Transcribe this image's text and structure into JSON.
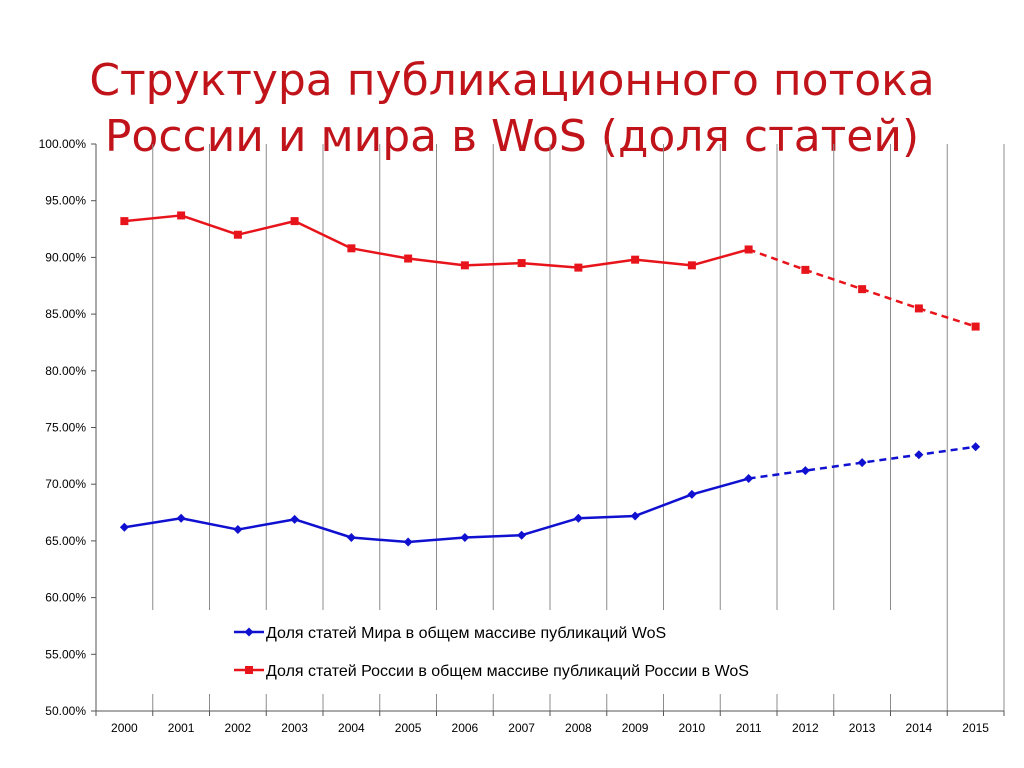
{
  "slide": {
    "title_line1": "Структура публикационного потока",
    "title_line2": "России и мира в WoS (доля статей)"
  },
  "colors": {
    "title": "#c0131a",
    "world": "#1010d0",
    "russia": "#e8141b",
    "grid": "#8c8c8c"
  },
  "chart_data": {
    "type": "line",
    "categories": [
      "2000",
      "2001",
      "2002",
      "2003",
      "2004",
      "2005",
      "2006",
      "2007",
      "2008",
      "2009",
      "2010",
      "2011",
      "2012",
      "2013",
      "2014",
      "2015"
    ],
    "y_tick_labels": [
      "100.00%",
      "95.00%",
      "90.00%",
      "85.00%",
      "80.00%",
      "75.00%",
      "70.00%",
      "65.00%",
      "60.00%",
      "55.00%",
      "50.00%"
    ],
    "ylim": [
      50,
      100
    ],
    "y_unit": "%",
    "grid": "vertical",
    "legend_position": "bottom-center",
    "series": [
      {
        "name": "Доля статей Мира в общем массиве публикаций WoS",
        "color": "#1010d0",
        "marker": "diamond",
        "values": [
          66.2,
          67.0,
          66.0,
          66.9,
          65.3,
          64.9,
          65.3,
          65.5,
          67.0,
          67.2,
          69.1,
          70.5,
          71.2,
          71.9,
          72.6,
          73.3
        ],
        "dashed_from_category": "2011"
      },
      {
        "name": "Доля статей России в общем массиве публикаций России в WoS",
        "color": "#e8141b",
        "marker": "square",
        "values": [
          93.2,
          93.7,
          92.0,
          93.2,
          90.8,
          89.9,
          89.3,
          89.5,
          89.1,
          89.8,
          89.3,
          90.7,
          88.9,
          87.2,
          85.5,
          83.9
        ],
        "dashed_from_category": "2011"
      }
    ]
  }
}
